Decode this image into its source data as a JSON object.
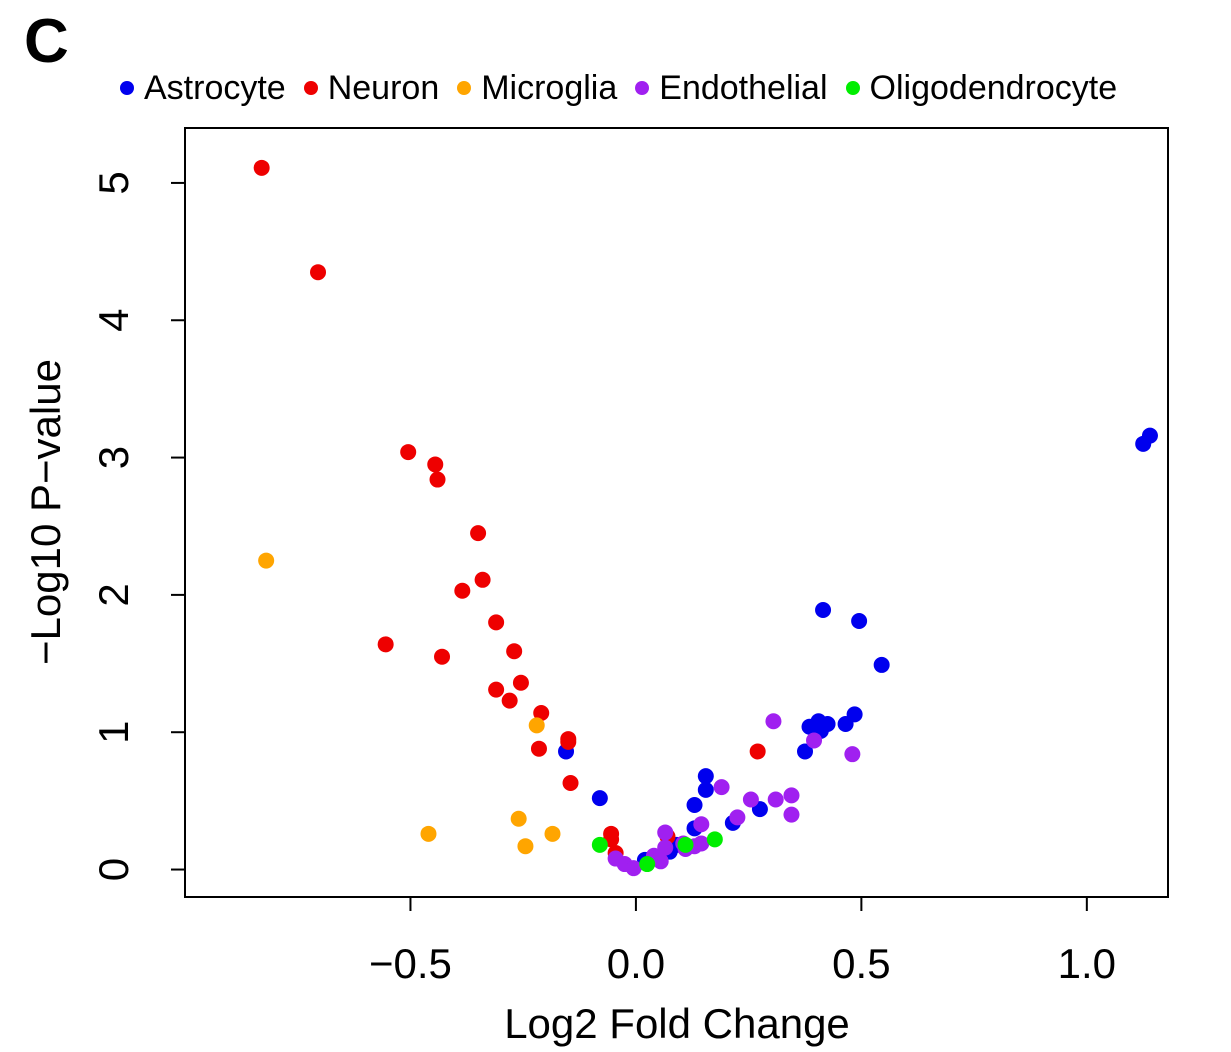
{
  "panel_label": "C",
  "chart_data": {
    "type": "scatter",
    "title": "",
    "xlabel": "Log2 Fold Change",
    "ylabel": "−Log10 P−value",
    "xlim": [
      -1.0,
      1.18
    ],
    "ylim": [
      -0.2,
      5.4
    ],
    "x_ticks": [
      -0.5,
      0.0,
      0.5,
      1.0
    ],
    "x_tick_labels": [
      "−0.5",
      "0.0",
      "0.5",
      "1.0"
    ],
    "y_ticks": [
      0,
      1,
      2,
      3,
      4,
      5
    ],
    "y_tick_labels": [
      "0",
      "1",
      "2",
      "3",
      "4",
      "5"
    ],
    "grid": false,
    "legend_position": "top",
    "series": [
      {
        "name": "Astrocyte",
        "color": "#0000ee",
        "points": [
          [
            1.125,
            3.1
          ],
          [
            1.14,
            3.16
          ],
          [
            0.415,
            1.89
          ],
          [
            0.495,
            1.81
          ],
          [
            0.545,
            1.49
          ],
          [
            0.485,
            1.13
          ],
          [
            0.465,
            1.06
          ],
          [
            0.405,
            1.08
          ],
          [
            0.385,
            1.04
          ],
          [
            0.425,
            1.06
          ],
          [
            0.41,
            1.01
          ],
          [
            0.375,
            0.86
          ],
          [
            0.155,
            0.68
          ],
          [
            0.155,
            0.58
          ],
          [
            0.13,
            0.47
          ],
          [
            0.275,
            0.44
          ],
          [
            0.215,
            0.34
          ],
          [
            0.13,
            0.3
          ],
          [
            0.09,
            0.18
          ],
          [
            0.075,
            0.13
          ],
          [
            0.02,
            0.07
          ],
          [
            -0.08,
            0.52
          ],
          [
            -0.155,
            0.86
          ]
        ]
      },
      {
        "name": "Neuron",
        "color": "#ee0000",
        "points": [
          [
            -0.83,
            5.11
          ],
          [
            -0.705,
            4.35
          ],
          [
            -0.505,
            3.04
          ],
          [
            -0.445,
            2.95
          ],
          [
            -0.44,
            2.84
          ],
          [
            -0.35,
            2.45
          ],
          [
            -0.34,
            2.11
          ],
          [
            -0.385,
            2.03
          ],
          [
            -0.31,
            1.8
          ],
          [
            -0.555,
            1.64
          ],
          [
            -0.43,
            1.55
          ],
          [
            -0.27,
            1.59
          ],
          [
            -0.255,
            1.36
          ],
          [
            -0.31,
            1.31
          ],
          [
            -0.28,
            1.23
          ],
          [
            -0.21,
            1.14
          ],
          [
            -0.15,
            0.95
          ],
          [
            -0.15,
            0.93
          ],
          [
            -0.215,
            0.88
          ],
          [
            -0.145,
            0.63
          ],
          [
            -0.055,
            0.26
          ],
          [
            -0.055,
            0.22
          ],
          [
            -0.045,
            0.12
          ],
          [
            0.07,
            0.24
          ],
          [
            0.27,
            0.86
          ]
        ]
      },
      {
        "name": "Microglia",
        "color": "#ffa500",
        "points": [
          [
            -0.82,
            2.25
          ],
          [
            -0.22,
            1.05
          ],
          [
            -0.46,
            0.26
          ],
          [
            -0.26,
            0.37
          ],
          [
            -0.185,
            0.26
          ],
          [
            -0.245,
            0.17
          ]
        ]
      },
      {
        "name": "Endothelial",
        "color": "#a020f0",
        "points": [
          [
            0.305,
            1.08
          ],
          [
            0.395,
            0.94
          ],
          [
            0.48,
            0.84
          ],
          [
            0.19,
            0.6
          ],
          [
            0.345,
            0.54
          ],
          [
            0.31,
            0.51
          ],
          [
            0.255,
            0.51
          ],
          [
            0.345,
            0.4
          ],
          [
            0.225,
            0.38
          ],
          [
            0.145,
            0.33
          ],
          [
            0.065,
            0.27
          ],
          [
            0.105,
            0.19
          ],
          [
            0.145,
            0.19
          ],
          [
            0.13,
            0.17
          ],
          [
            0.11,
            0.15
          ],
          [
            0.065,
            0.16
          ],
          [
            0.04,
            0.1
          ],
          [
            0.055,
            0.06
          ],
          [
            -0.045,
            0.08
          ],
          [
            -0.025,
            0.04
          ],
          [
            -0.005,
            0.01
          ]
        ]
      },
      {
        "name": "Oligodendrocyte",
        "color": "#00ee00",
        "points": [
          [
            -0.08,
            0.18
          ],
          [
            0.11,
            0.18
          ],
          [
            0.175,
            0.22
          ],
          [
            0.025,
            0.04
          ]
        ]
      }
    ]
  }
}
